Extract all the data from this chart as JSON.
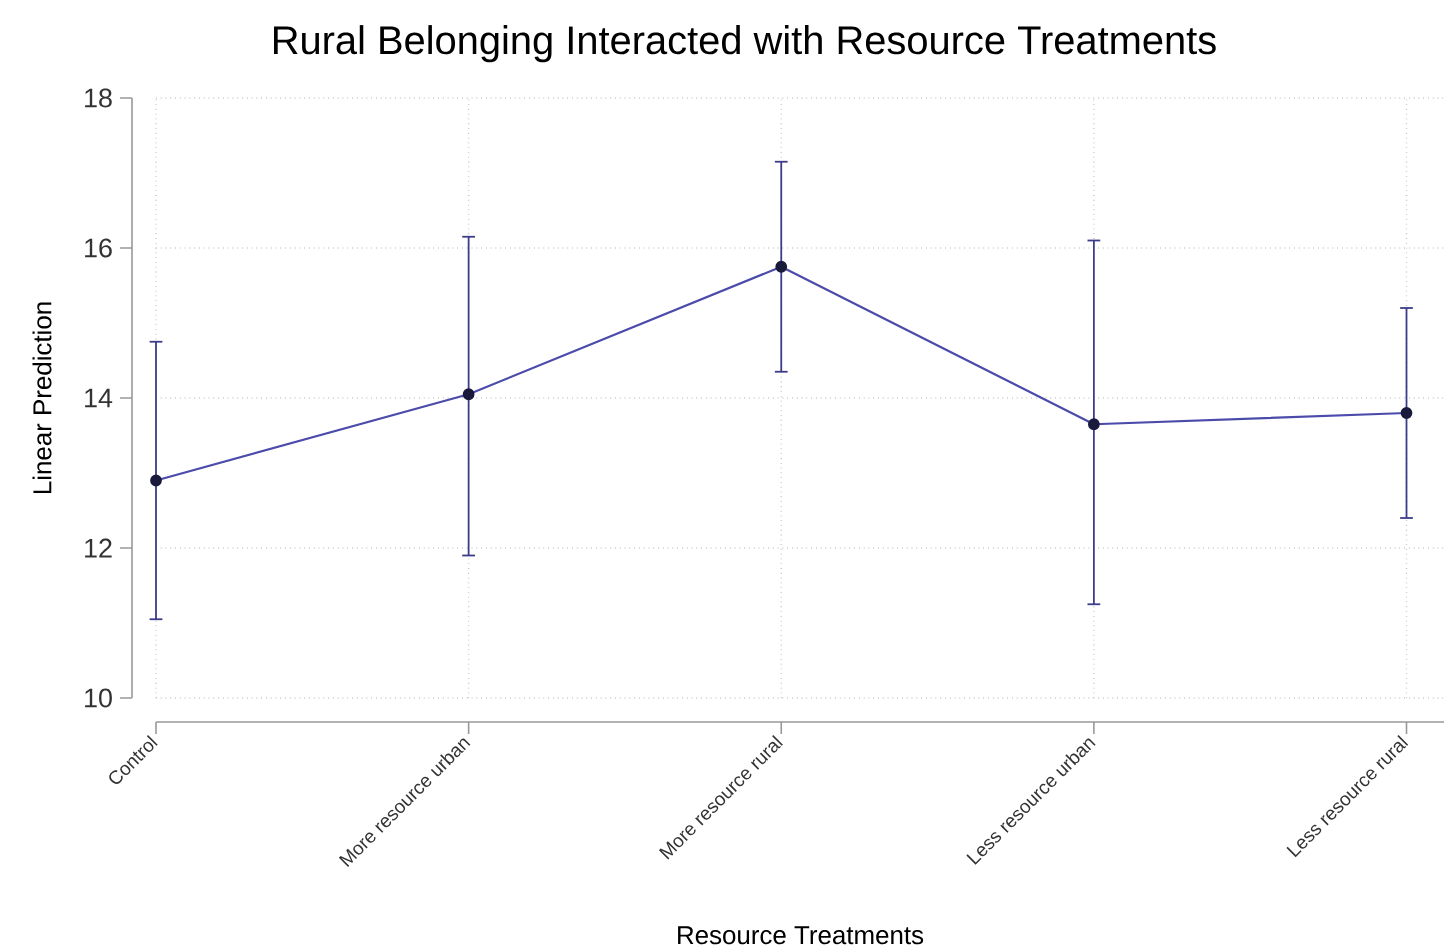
{
  "chart_data": {
    "type": "line",
    "title": "Rural Belonging Interacted with Resource Treatments",
    "xlabel": "Resource Treatments",
    "ylabel": "Linear Prediction",
    "categories": [
      "Control",
      "More resource urban",
      "More resource rural",
      "Less resource urban",
      "Less resource rural"
    ],
    "values": [
      12.9,
      14.05,
      15.75,
      13.65,
      13.8
    ],
    "errors": [
      [
        11.05,
        14.75
      ],
      [
        11.9,
        16.15
      ],
      [
        14.35,
        17.15
      ],
      [
        11.25,
        16.1
      ],
      [
        12.4,
        15.2
      ]
    ],
    "color": "#4b4bab",
    "ylim": [
      10,
      18
    ],
    "yticks": [
      10,
      12,
      14,
      16,
      18
    ],
    "grid": true,
    "marker": "circle",
    "line_style": "solid"
  }
}
